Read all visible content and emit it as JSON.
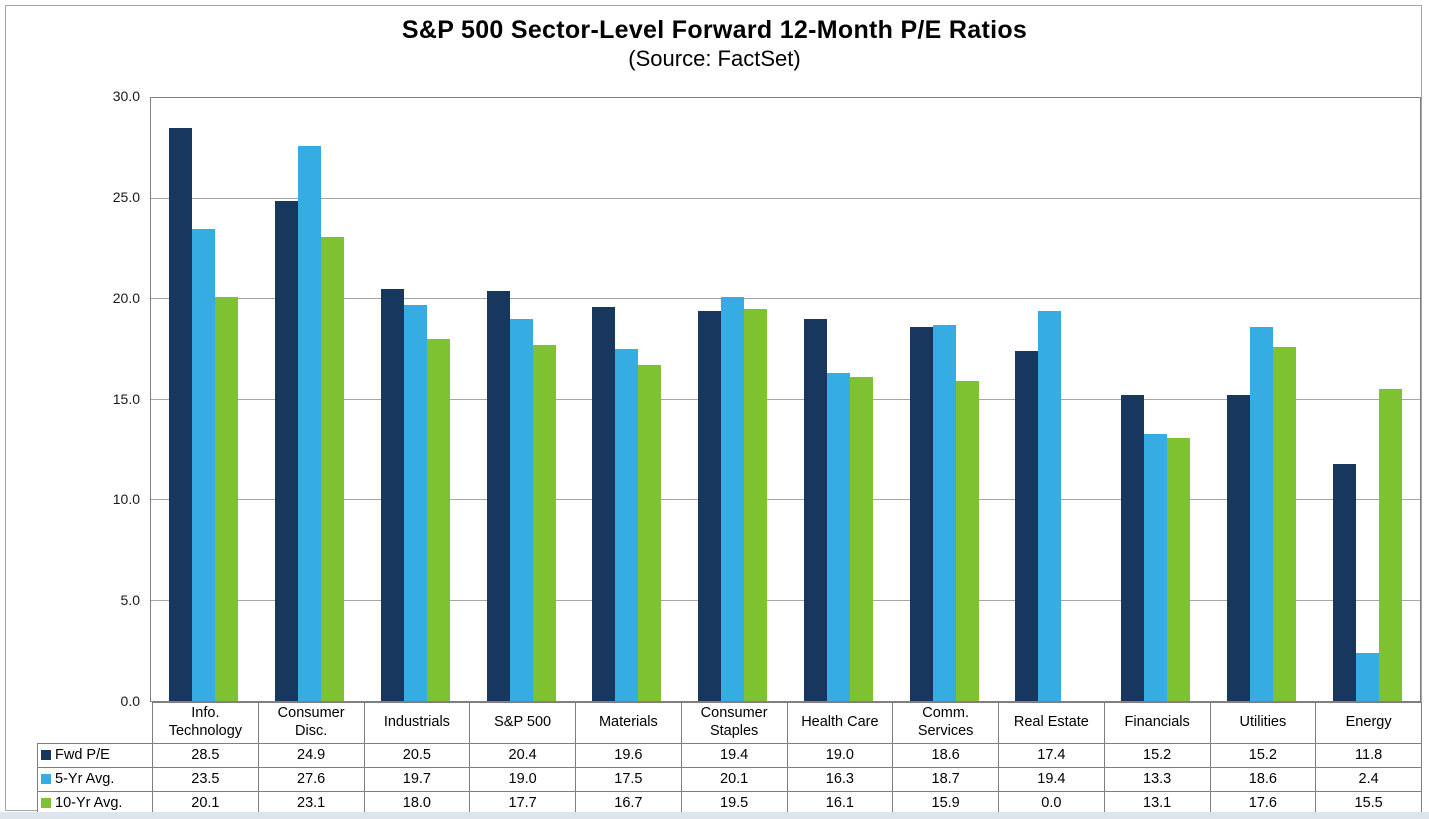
{
  "chart_data": {
    "type": "bar",
    "title": "S&P 500 Sector-Level Forward 12-Month P/E Ratios",
    "subtitle": "(Source: FactSet)",
    "categories": [
      "Info. Technology",
      "Consumer Disc.",
      "Industrials",
      "S&P 500",
      "Materials",
      "Consumer Staples",
      "Health Care",
      "Comm. Services",
      "Real Estate",
      "Financials",
      "Utilities",
      "Energy"
    ],
    "series": [
      {
        "name": "Fwd P/E",
        "color": "#17375e",
        "values": [
          28.5,
          24.9,
          20.5,
          20.4,
          19.6,
          19.4,
          19.0,
          18.6,
          17.4,
          15.2,
          15.2,
          11.8
        ]
      },
      {
        "name": "5-Yr Avg.",
        "color": "#35ace2",
        "values": [
          23.5,
          27.6,
          19.7,
          19.0,
          17.5,
          20.1,
          16.3,
          18.7,
          19.4,
          13.3,
          18.6,
          2.4
        ]
      },
      {
        "name": "10-Yr Avg.",
        "color": "#7ec231",
        "values": [
          20.1,
          23.1,
          18.0,
          17.7,
          16.7,
          19.5,
          16.1,
          15.9,
          0.0,
          13.1,
          17.6,
          15.5
        ]
      }
    ],
    "ylim": [
      0,
      30
    ],
    "ytick_interval": 5,
    "ytick_labels": [
      "30.0",
      "25.0",
      "20.0",
      "15.0",
      "10.0",
      "5.0",
      "0.0"
    ],
    "value_decimals": 1,
    "grid": true,
    "legend_position": "data-table-row-labels",
    "colors": {
      "gridline": "#a6a6a6",
      "plot_border": "#7f7f7f",
      "table_border": "#7f7f7f",
      "frame_border": "#a6a6a6",
      "text": "#000000"
    }
  }
}
